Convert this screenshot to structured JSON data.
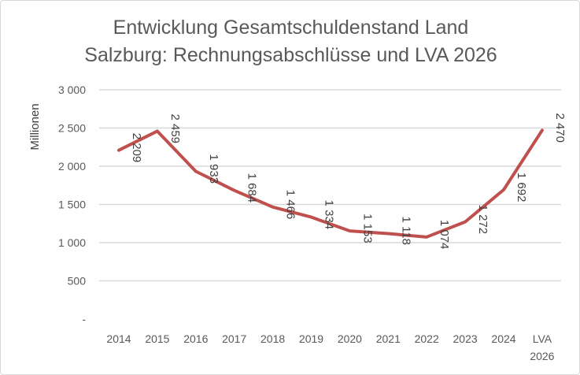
{
  "chart_data": {
    "type": "line",
    "title_lines": [
      "Entwicklung Gesamtschuldenstand  Land",
      "Salzburg: Rechnungsabschlüsse  und LVA 2026"
    ],
    "ylabel": "Millionen",
    "xlabel": "",
    "categories": [
      "2014",
      "2015",
      "2016",
      "2017",
      "2018",
      "2019",
      "2020",
      "2021",
      "2022",
      "2023",
      "2024",
      "LVA 2026"
    ],
    "values": [
      2209,
      2459,
      1933,
      1684,
      1466,
      1334,
      1153,
      1118,
      1074,
      1272,
      1692,
      2470
    ],
    "data_labels": [
      "2 209",
      "2 459",
      "1 933",
      "1 684",
      "1 466",
      "1 334",
      "1 153",
      "1 118",
      "1 074",
      "1 272",
      "1 692",
      "2 470"
    ],
    "ylim": [
      0,
      3000
    ],
    "yticks": [
      0,
      500,
      1000,
      1500,
      2000,
      2500,
      3000
    ],
    "ytick_labels": [
      "-",
      "500",
      "1 000",
      "1 500",
      "2 000",
      "2 500",
      "3 000"
    ],
    "grid": true,
    "legend": "none",
    "line_color": "#C0504D"
  }
}
